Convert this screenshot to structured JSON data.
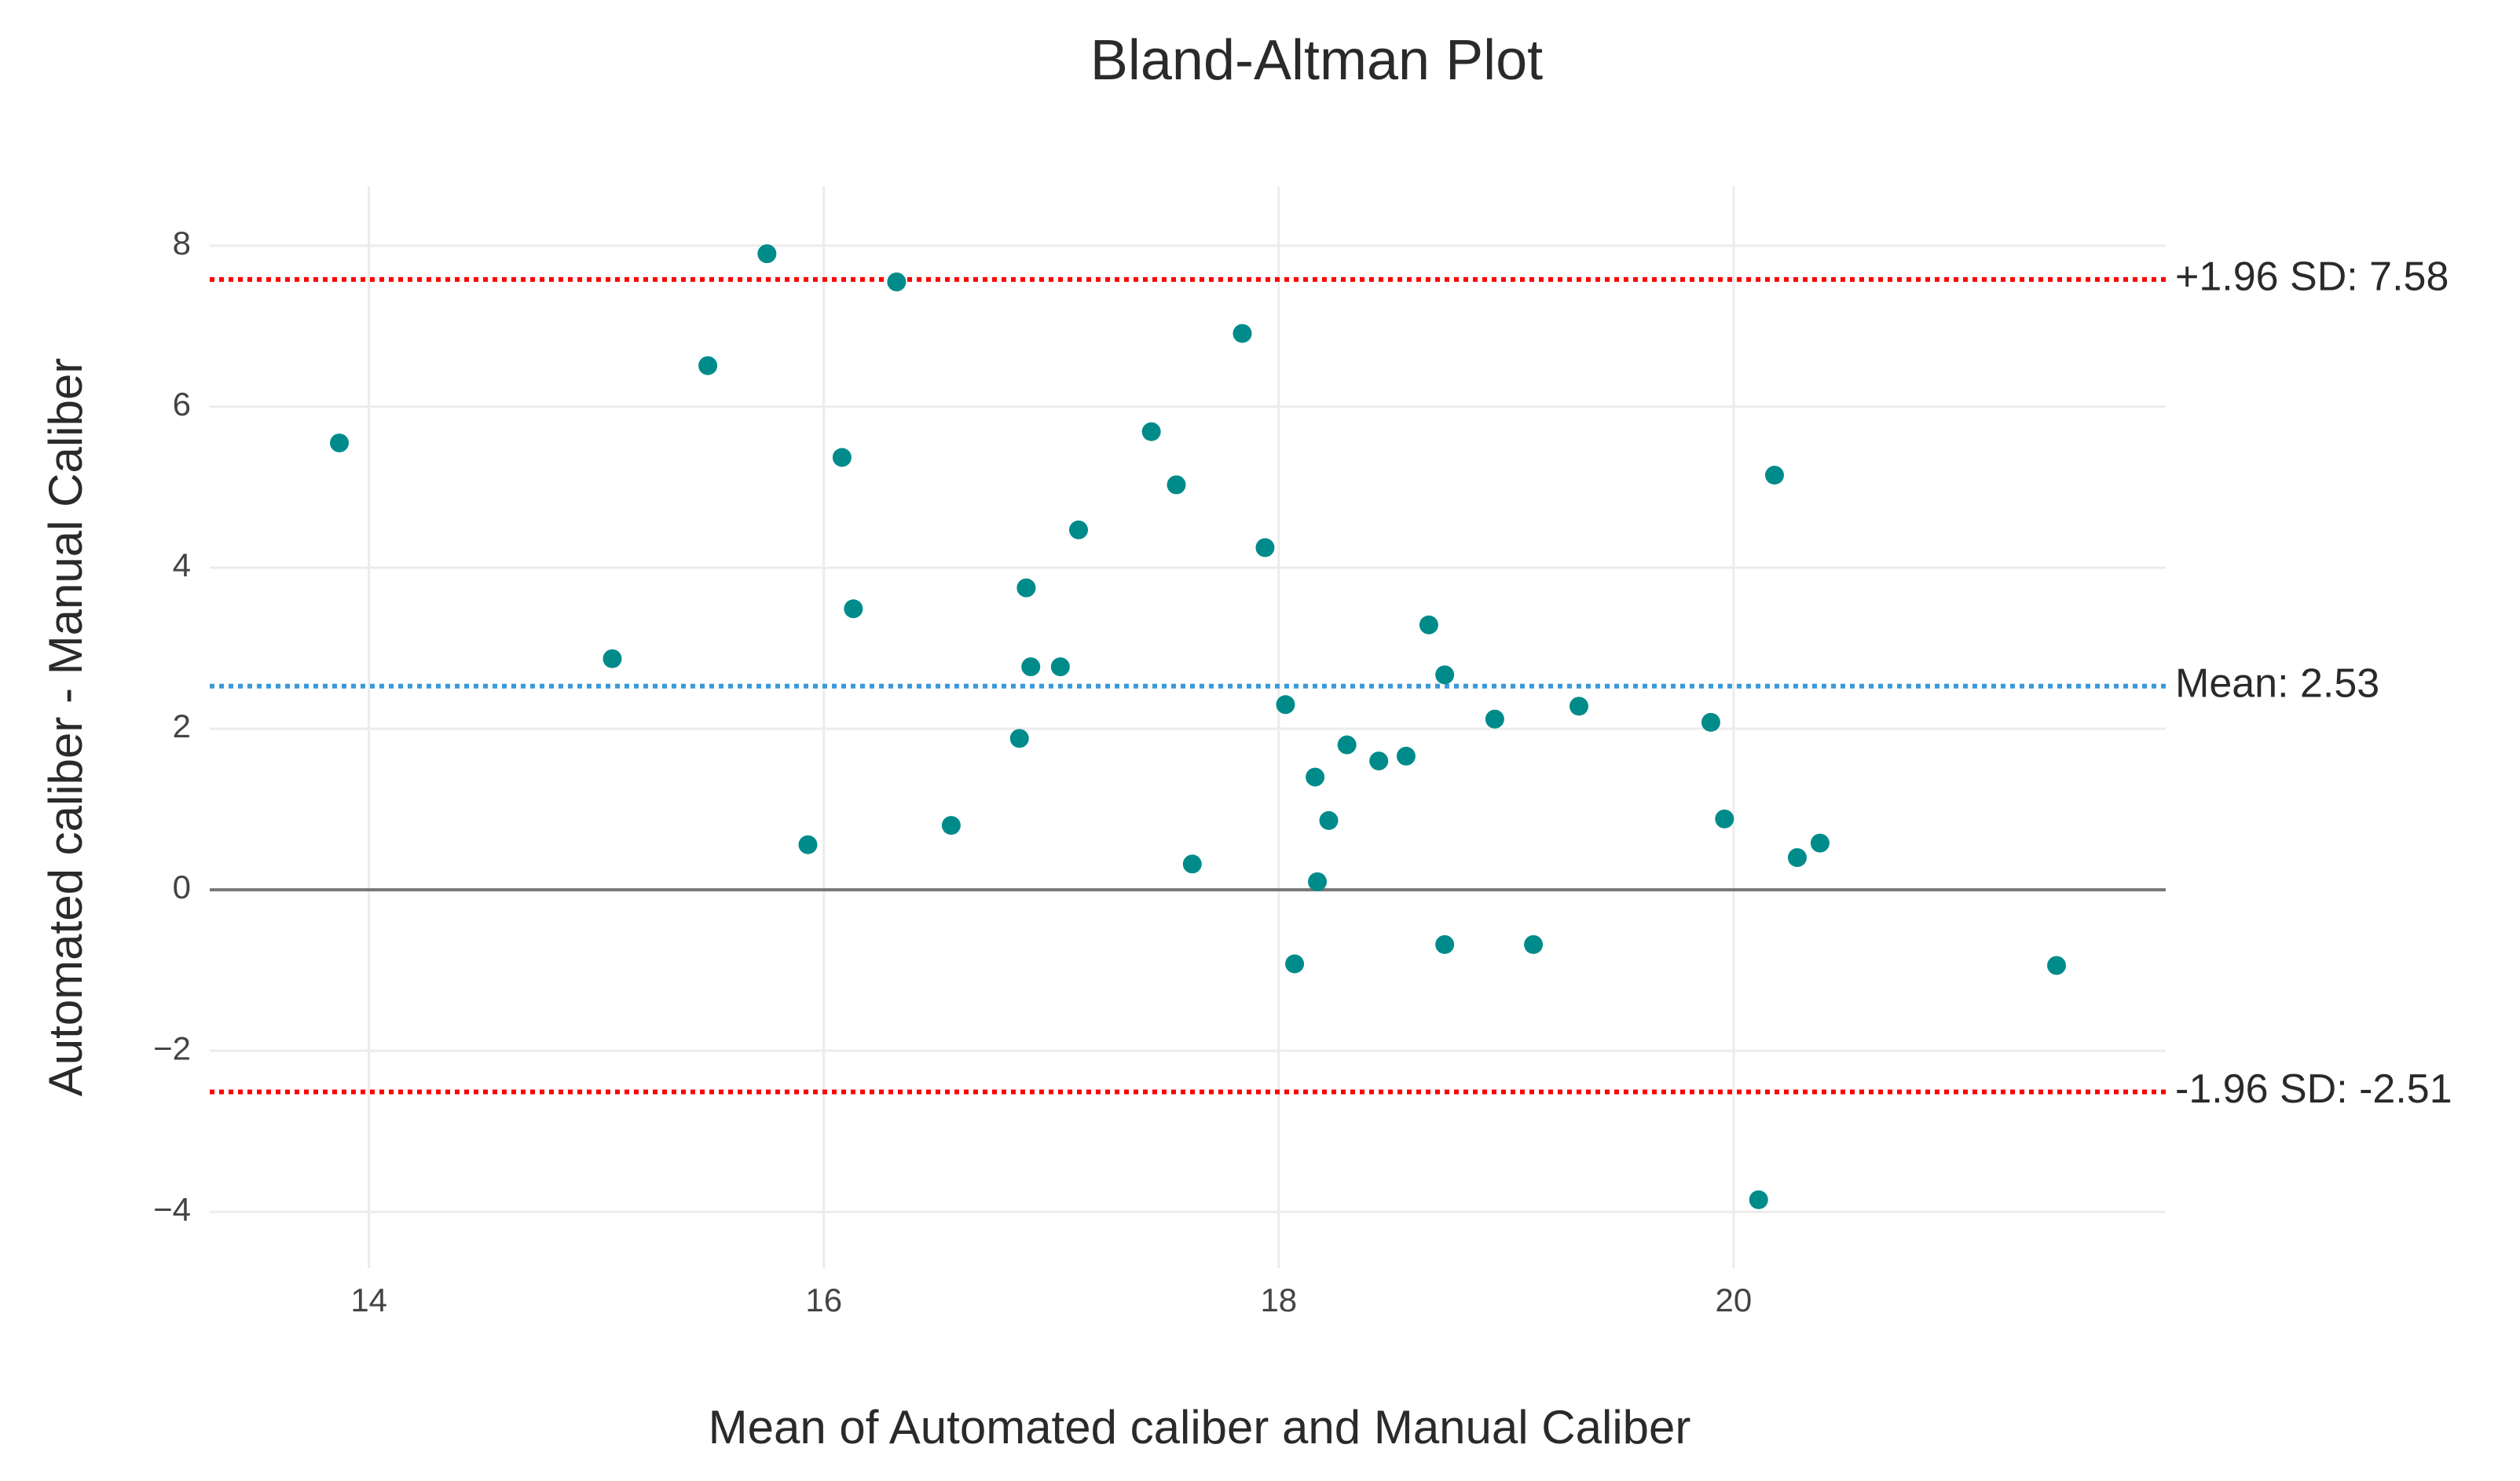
{
  "chart_data": {
    "type": "scatter",
    "title": "Bland-Altman Plot",
    "x_label": "Mean of Automated caliber and Manual Caliber",
    "y_label": "Automated caliber - Manual Caliber",
    "series": [
      {
        "color": "#008b8b",
        "x": [
          13.87,
          15.75,
          16.32,
          15.49,
          15.07,
          16.08,
          16.13,
          15.93,
          16.56,
          16.89,
          16.91,
          17.04,
          16.86,
          17.12,
          17.44,
          17.55,
          17.84,
          17.94,
          17.62,
          18.03,
          18.07,
          18.16,
          18.17,
          18.22,
          18.3,
          18.44,
          18.56,
          18.66,
          18.73,
          18.73,
          18.95,
          19.12,
          19.32,
          19.9,
          19.96,
          20.18,
          20.28,
          20.38,
          20.11,
          21.42
        ],
        "values": [
          5.55,
          7.9,
          7.55,
          6.51,
          2.87,
          5.37,
          3.49,
          0.56,
          0.8,
          3.75,
          2.77,
          2.77,
          1.88,
          4.47,
          5.69,
          5.03,
          6.91,
          4.25,
          0.32,
          2.3,
          -0.92,
          1.4,
          0.1,
          0.86,
          1.8,
          1.6,
          1.66,
          3.29,
          2.67,
          -0.68,
          2.12,
          -0.68,
          2.28,
          2.08,
          0.88,
          5.15,
          0.4,
          0.58,
          -3.85,
          -0.94
        ]
      }
    ],
    "reference_lines": [
      {
        "value": 7.58,
        "label": "+1.96 SD: 7.58",
        "color": "#ff0000"
      },
      {
        "value": 2.53,
        "label": "Mean: 2.53",
        "color": "#3a9ad9"
      },
      {
        "value": -2.51,
        "label": "-1.96 SD: -2.51",
        "color": "#ff0000"
      }
    ],
    "xlim": [
      13.3,
      21.9
    ],
    "ylim": [
      -4.7,
      8.74
    ],
    "xticks": [
      14,
      16,
      18,
      20
    ],
    "yticks": [
      {
        "value": -4,
        "label": "−4"
      },
      {
        "value": -2,
        "label": "−2"
      },
      0,
      2,
      4,
      6,
      8
    ],
    "grid": true
  }
}
